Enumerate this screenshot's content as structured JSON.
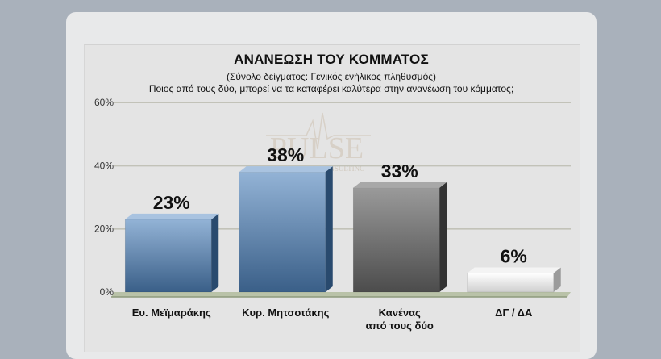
{
  "chart_data": {
    "type": "bar",
    "title": "ΑΝΑΝΕΩΣΗ ΤΟΥ ΚΟΜΜΑΤΟΣ",
    "subtitle": "(Σύνολο δείγματος: Γενικός ενήλικος πληθυσμός)",
    "question": "Ποιος από τους δύο, μπορεί να τα καταφέρει καλύτερα στην ανανέωση του κόμματος;",
    "categories": [
      [
        "Ευ. Μεϊμαράκης"
      ],
      [
        "Κυρ. Μητσοτάκης"
      ],
      [
        "Κανένας",
        "από τους δύο"
      ],
      [
        "ΔΓ / ΔΑ"
      ]
    ],
    "values": [
      23,
      38,
      33,
      6
    ],
    "data_labels": [
      "23%",
      "38%",
      "33%",
      "6%"
    ],
    "ylim": [
      0,
      60
    ],
    "yticks": [
      0,
      20,
      40,
      60
    ],
    "ytick_labels": [
      "0%",
      "20%",
      "40%",
      "60%"
    ],
    "grid": true,
    "legend": "none",
    "bar_colors": [
      {
        "front_top": "#93b3d6",
        "front_bottom": "#3a5f88",
        "side": "#294a6e",
        "top": "#a9c3e0"
      },
      {
        "front_top": "#93b3d6",
        "front_bottom": "#3a5f88",
        "side": "#294a6e",
        "top": "#a9c3e0"
      },
      {
        "front_top": "#9a9a9a",
        "front_bottom": "#4c4c4c",
        "side": "#333333",
        "top": "#a8a8a8"
      },
      {
        "front_top": "#ffffff",
        "front_bottom": "#cfcfcf",
        "side": "#9b9b9b",
        "top": "#f4f4f4"
      }
    ]
  },
  "watermark": {
    "brand": "PULSE",
    "tagline": "RESEARCH & CONSULTING"
  }
}
